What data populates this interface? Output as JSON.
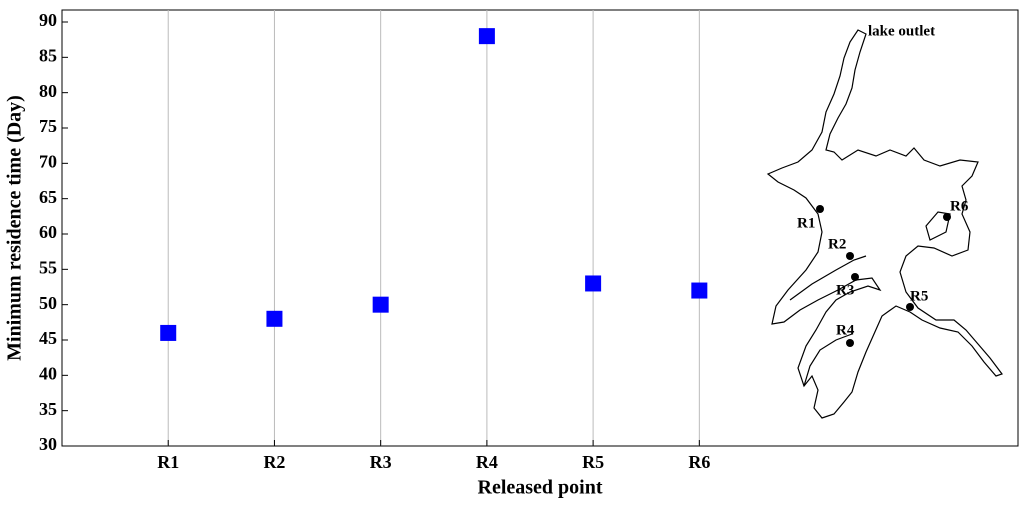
{
  "chart_data": {
    "type": "scatter",
    "xlabel": "Released point",
    "ylabel": "Minimum residence time (Day)",
    "x": [
      1,
      2,
      3,
      4,
      5,
      6
    ],
    "series": [
      {
        "color": "#0000ff",
        "values": [
          46,
          48,
          50,
          88,
          53,
          52
        ]
      }
    ],
    "xlim": [
      0,
      9
    ],
    "xticks": [
      {
        "value": 1,
        "label": "R1"
      },
      {
        "value": 2,
        "label": "R2"
      },
      {
        "value": 3,
        "label": "R3"
      },
      {
        "value": 4,
        "label": "R4"
      },
      {
        "value": 5,
        "label": "R5"
      },
      {
        "value": 6,
        "label": "R6"
      }
    ],
    "ylim": [
      30,
      90
    ],
    "yticks": [
      30,
      35,
      40,
      45,
      50,
      55,
      60,
      65,
      70,
      75,
      80,
      85,
      90
    ],
    "grid": "x",
    "inset": {
      "labels": [
        "lake outlet",
        "R1",
        "R2",
        "R3",
        "R4",
        "R5",
        "R6"
      ]
    }
  }
}
